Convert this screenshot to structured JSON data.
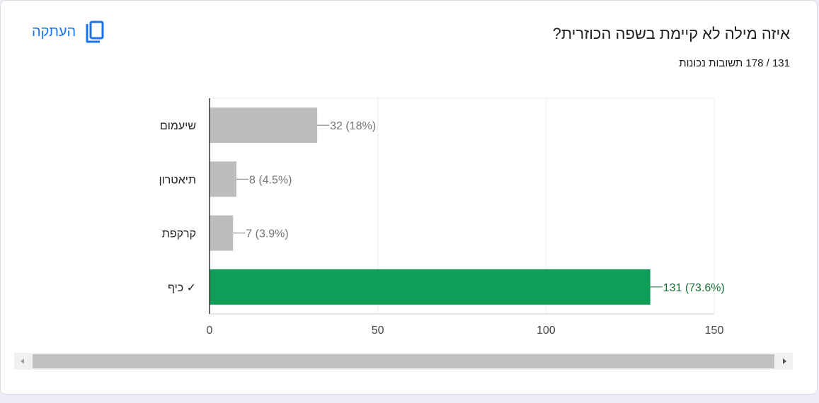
{
  "header": {
    "question": "איזה מילה לא קיימת בשפה הכוזרית?",
    "score": "131 / 178 תשובות נכונות",
    "copy_label": "העתקה"
  },
  "icons": {
    "copy": "copy-icon",
    "correct": "checkmark-icon",
    "scroll_left": "triangle-left-icon",
    "scroll_right": "triangle-right-icon"
  },
  "colors": {
    "accent": "#1a73e8",
    "correct_bar": "#0f9d58",
    "incorrect_bar": "#bdbdbd",
    "correct_label": "#137333",
    "incorrect_label": "#757575"
  },
  "chart_data": {
    "type": "bar",
    "orientation": "horizontal",
    "categories": [
      "שיעמום",
      "תיאטרון",
      "קרקפת",
      "כיף ✓"
    ],
    "values": [
      32,
      8,
      7,
      131
    ],
    "value_labels": [
      "32 (18%)",
      "8 (4.5%)",
      "7 (3.9%)",
      "131 (73.6%)"
    ],
    "correct": [
      false,
      false,
      false,
      true
    ],
    "xlim": [
      0,
      150
    ],
    "x_ticks": [
      0,
      50,
      100,
      150
    ],
    "x_tick_labels": [
      "0",
      "50",
      "100",
      "150"
    ],
    "grid": true,
    "legend": "none"
  }
}
